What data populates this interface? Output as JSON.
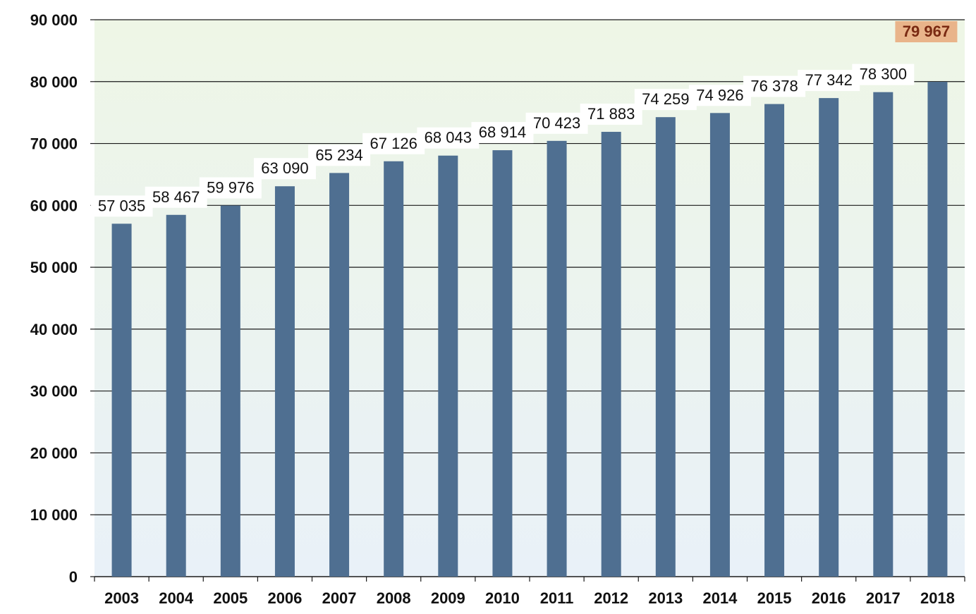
{
  "chart_data": {
    "type": "bar",
    "categories": [
      "2003",
      "2004",
      "2005",
      "2006",
      "2007",
      "2008",
      "2009",
      "2010",
      "2011",
      "2012",
      "2013",
      "2014",
      "2015",
      "2016",
      "2017",
      "2018"
    ],
    "values": [
      57035,
      58467,
      59976,
      63090,
      65234,
      67126,
      68043,
      68914,
      70423,
      71883,
      74259,
      74926,
      76378,
      77342,
      78300,
      79967
    ],
    "data_labels": [
      "57 035",
      "58 467",
      "59 976",
      "63 090",
      "65 234",
      "67 126",
      "68 043",
      "68 914",
      "70 423",
      "71 883",
      "74 259",
      "74 926",
      "76 378",
      "77 342",
      "78 300",
      "79 967"
    ],
    "y_ticks": [
      0,
      10000,
      20000,
      30000,
      40000,
      50000,
      60000,
      70000,
      80000,
      90000
    ],
    "y_tick_labels": [
      "0",
      "10 000",
      "20 000",
      "30 000",
      "40 000",
      "50 000",
      "60 000",
      "70 000",
      "80 000",
      "90 000"
    ],
    "ylim": [
      0,
      90000
    ],
    "grid": true,
    "title": "",
    "xlabel": "",
    "ylabel": "",
    "colors": {
      "bar": "#4f6f91",
      "plot_bg_top": "#eef6e6",
      "plot_bg_bottom": "#e9f1f8",
      "grid": "#1a1a1a",
      "axis_text": "#111111",
      "label_bg": "#ffffff",
      "highlight_bg": "#e9b48a",
      "highlight_text": "#7a2a12"
    }
  }
}
